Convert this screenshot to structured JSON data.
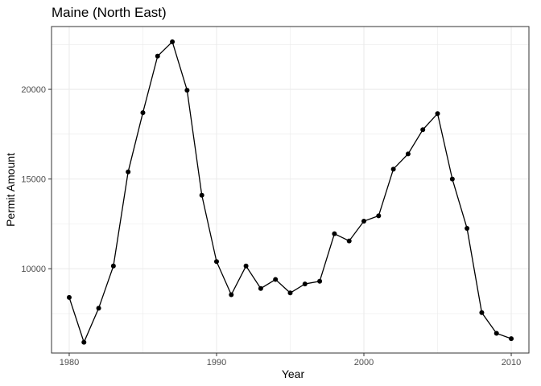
{
  "chart_data": {
    "type": "line",
    "title": "Maine (North East)",
    "xlabel": "Year",
    "ylabel": "Permit Amount",
    "xlim": [
      1978.8,
      2011.2
    ],
    "ylim": [
      5300,
      23500
    ],
    "x_ticks": [
      1980,
      1990,
      2000,
      2010
    ],
    "x_tick_labels": [
      "1980",
      "1990",
      "2000",
      "2010"
    ],
    "x_minor_ticks": [
      1985,
      1995,
      2005
    ],
    "y_ticks": [
      10000,
      15000,
      20000
    ],
    "y_tick_labels": [
      "10000",
      "15000",
      "20000"
    ],
    "y_minor_ticks": [
      7500,
      12500,
      17500,
      22500
    ],
    "grid": true,
    "legend": "none",
    "line_color": "#000000",
    "series": [
      {
        "x": [
          1980,
          1981,
          1982,
          1983,
          1984,
          1985,
          1986,
          1987,
          1988,
          1989,
          1990,
          1991,
          1992,
          1993,
          1994,
          1995,
          1996,
          1997,
          1998,
          1999,
          2000,
          2001,
          2002,
          2003,
          2004,
          2005,
          2006,
          2007,
          2008,
          2009,
          2010
        ],
        "y": [
          8400,
          5900,
          7800,
          10150,
          15400,
          18700,
          21850,
          22650,
          19950,
          14100,
          10400,
          8550,
          10150,
          8900,
          9400,
          8650,
          9150,
          9300,
          11950,
          11550,
          12650,
          12950,
          15550,
          16400,
          17750,
          18650,
          15000,
          12250,
          7550,
          6400,
          6100
        ]
      }
    ]
  }
}
